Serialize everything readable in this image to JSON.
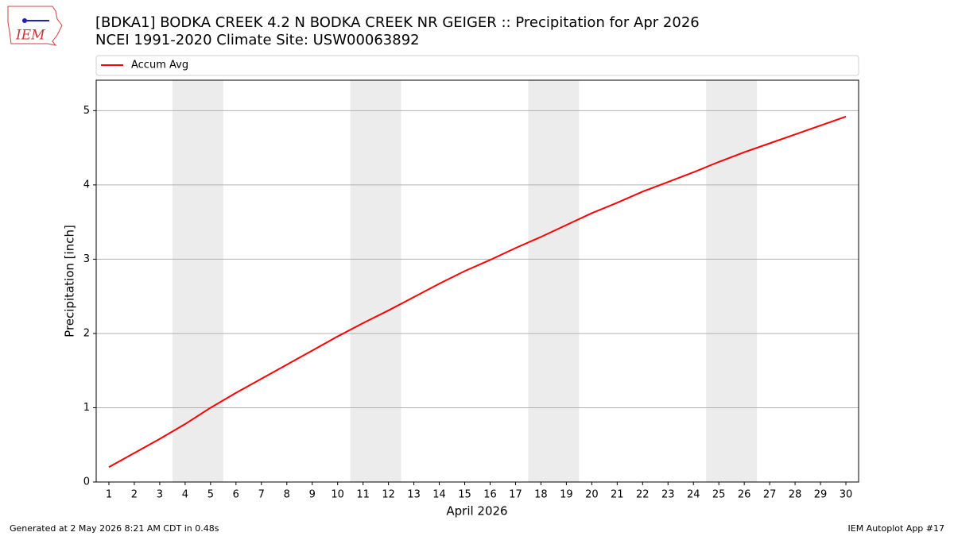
{
  "logo_text": "IEM",
  "chart_data": {
    "type": "line",
    "title": "[BDKA1] BODKA CREEK 4.2 N BODKA CREEK NR GEIGER :: Precipitation for Apr 2026",
    "subtitle": "NCEI 1991-2020 Climate Site: USW00063892",
    "x_label": "April 2026",
    "y_label": "Precipitation [inch]",
    "x": [
      1,
      2,
      3,
      4,
      5,
      6,
      7,
      8,
      9,
      10,
      11,
      12,
      13,
      14,
      15,
      16,
      17,
      18,
      19,
      20,
      21,
      22,
      23,
      24,
      25,
      26,
      27,
      28,
      29,
      30
    ],
    "series": [
      {
        "name": "Accum Avg",
        "color": "#ff0000",
        "values": [
          0.2,
          0.39,
          0.58,
          0.78,
          1.0,
          1.2,
          1.39,
          1.58,
          1.77,
          1.96,
          2.14,
          2.31,
          2.49,
          2.67,
          2.84,
          2.99,
          3.15,
          3.3,
          3.46,
          3.62,
          3.76,
          3.91,
          4.04,
          4.17,
          4.31,
          4.44,
          4.56,
          4.68,
          4.8,
          4.92
        ]
      }
    ],
    "xlim": [
      0.5,
      30.5
    ],
    "ylim": [
      0,
      5.41
    ],
    "xticks": [
      1,
      2,
      3,
      4,
      5,
      6,
      7,
      8,
      9,
      10,
      11,
      12,
      13,
      14,
      15,
      16,
      17,
      18,
      19,
      20,
      21,
      22,
      23,
      24,
      25,
      26,
      27,
      28,
      29,
      30
    ],
    "yticks": [
      0,
      1,
      2,
      3,
      4,
      5
    ],
    "grid": true,
    "legend_position": "top",
    "weekend_spans": [
      [
        3.5,
        5.5
      ],
      [
        10.5,
        12.5
      ],
      [
        17.5,
        19.5
      ],
      [
        24.5,
        26.5
      ]
    ],
    "weekend_color": "#ececec"
  },
  "footer": {
    "left": "Generated at 2 May 2026 8:21 AM CDT in 0.48s",
    "right": "IEM Autoplot App #17"
  }
}
